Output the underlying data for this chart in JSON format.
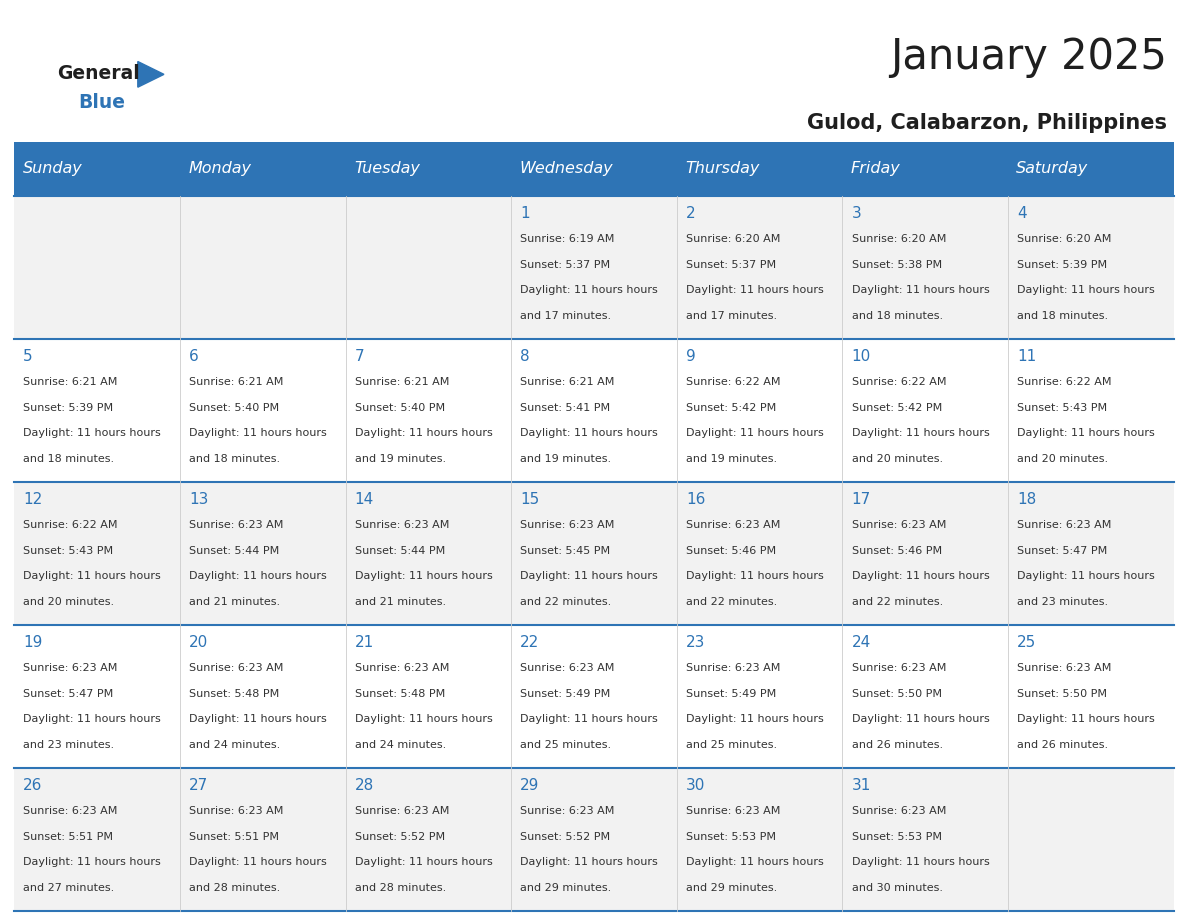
{
  "title": "January 2025",
  "subtitle": "Gulod, Calabarzon, Philippines",
  "header_bg_color": "#2E74B5",
  "header_text_color": "#FFFFFF",
  "cell_bg_even": "#F2F2F2",
  "cell_bg_odd": "#FFFFFF",
  "day_names": [
    "Sunday",
    "Monday",
    "Tuesday",
    "Wednesday",
    "Thursday",
    "Friday",
    "Saturday"
  ],
  "title_color": "#1F1F1F",
  "subtitle_color": "#1F1F1F",
  "day_number_color": "#2E74B5",
  "cell_text_color": "#333333",
  "grid_line_color": "#2E74B5",
  "logo_general_color": "#1F1F1F",
  "logo_blue_color": "#2E74B5",
  "calendar_data": [
    [
      {
        "day": null,
        "sunrise": null,
        "sunset": null,
        "daylight": null
      },
      {
        "day": null,
        "sunrise": null,
        "sunset": null,
        "daylight": null
      },
      {
        "day": null,
        "sunrise": null,
        "sunset": null,
        "daylight": null
      },
      {
        "day": 1,
        "sunrise": "6:19 AM",
        "sunset": "5:37 PM",
        "daylight": "11 hours and 17 minutes."
      },
      {
        "day": 2,
        "sunrise": "6:20 AM",
        "sunset": "5:37 PM",
        "daylight": "11 hours and 17 minutes."
      },
      {
        "day": 3,
        "sunrise": "6:20 AM",
        "sunset": "5:38 PM",
        "daylight": "11 hours and 18 minutes."
      },
      {
        "day": 4,
        "sunrise": "6:20 AM",
        "sunset": "5:39 PM",
        "daylight": "11 hours and 18 minutes."
      }
    ],
    [
      {
        "day": 5,
        "sunrise": "6:21 AM",
        "sunset": "5:39 PM",
        "daylight": "11 hours and 18 minutes."
      },
      {
        "day": 6,
        "sunrise": "6:21 AM",
        "sunset": "5:40 PM",
        "daylight": "11 hours and 18 minutes."
      },
      {
        "day": 7,
        "sunrise": "6:21 AM",
        "sunset": "5:40 PM",
        "daylight": "11 hours and 19 minutes."
      },
      {
        "day": 8,
        "sunrise": "6:21 AM",
        "sunset": "5:41 PM",
        "daylight": "11 hours and 19 minutes."
      },
      {
        "day": 9,
        "sunrise": "6:22 AM",
        "sunset": "5:42 PM",
        "daylight": "11 hours and 19 minutes."
      },
      {
        "day": 10,
        "sunrise": "6:22 AM",
        "sunset": "5:42 PM",
        "daylight": "11 hours and 20 minutes."
      },
      {
        "day": 11,
        "sunrise": "6:22 AM",
        "sunset": "5:43 PM",
        "daylight": "11 hours and 20 minutes."
      }
    ],
    [
      {
        "day": 12,
        "sunrise": "6:22 AM",
        "sunset": "5:43 PM",
        "daylight": "11 hours and 20 minutes."
      },
      {
        "day": 13,
        "sunrise": "6:23 AM",
        "sunset": "5:44 PM",
        "daylight": "11 hours and 21 minutes."
      },
      {
        "day": 14,
        "sunrise": "6:23 AM",
        "sunset": "5:44 PM",
        "daylight": "11 hours and 21 minutes."
      },
      {
        "day": 15,
        "sunrise": "6:23 AM",
        "sunset": "5:45 PM",
        "daylight": "11 hours and 22 minutes."
      },
      {
        "day": 16,
        "sunrise": "6:23 AM",
        "sunset": "5:46 PM",
        "daylight": "11 hours and 22 minutes."
      },
      {
        "day": 17,
        "sunrise": "6:23 AM",
        "sunset": "5:46 PM",
        "daylight": "11 hours and 22 minutes."
      },
      {
        "day": 18,
        "sunrise": "6:23 AM",
        "sunset": "5:47 PM",
        "daylight": "11 hours and 23 minutes."
      }
    ],
    [
      {
        "day": 19,
        "sunrise": "6:23 AM",
        "sunset": "5:47 PM",
        "daylight": "11 hours and 23 minutes."
      },
      {
        "day": 20,
        "sunrise": "6:23 AM",
        "sunset": "5:48 PM",
        "daylight": "11 hours and 24 minutes."
      },
      {
        "day": 21,
        "sunrise": "6:23 AM",
        "sunset": "5:48 PM",
        "daylight": "11 hours and 24 minutes."
      },
      {
        "day": 22,
        "sunrise": "6:23 AM",
        "sunset": "5:49 PM",
        "daylight": "11 hours and 25 minutes."
      },
      {
        "day": 23,
        "sunrise": "6:23 AM",
        "sunset": "5:49 PM",
        "daylight": "11 hours and 25 minutes."
      },
      {
        "day": 24,
        "sunrise": "6:23 AM",
        "sunset": "5:50 PM",
        "daylight": "11 hours and 26 minutes."
      },
      {
        "day": 25,
        "sunrise": "6:23 AM",
        "sunset": "5:50 PM",
        "daylight": "11 hours and 26 minutes."
      }
    ],
    [
      {
        "day": 26,
        "sunrise": "6:23 AM",
        "sunset": "5:51 PM",
        "daylight": "11 hours and 27 minutes."
      },
      {
        "day": 27,
        "sunrise": "6:23 AM",
        "sunset": "5:51 PM",
        "daylight": "11 hours and 28 minutes."
      },
      {
        "day": 28,
        "sunrise": "6:23 AM",
        "sunset": "5:52 PM",
        "daylight": "11 hours and 28 minutes."
      },
      {
        "day": 29,
        "sunrise": "6:23 AM",
        "sunset": "5:52 PM",
        "daylight": "11 hours and 29 minutes."
      },
      {
        "day": 30,
        "sunrise": "6:23 AM",
        "sunset": "5:53 PM",
        "daylight": "11 hours and 29 minutes."
      },
      {
        "day": 31,
        "sunrise": "6:23 AM",
        "sunset": "5:53 PM",
        "daylight": "11 hours and 30 minutes."
      },
      {
        "day": null,
        "sunrise": null,
        "sunset": null,
        "daylight": null
      }
    ]
  ]
}
